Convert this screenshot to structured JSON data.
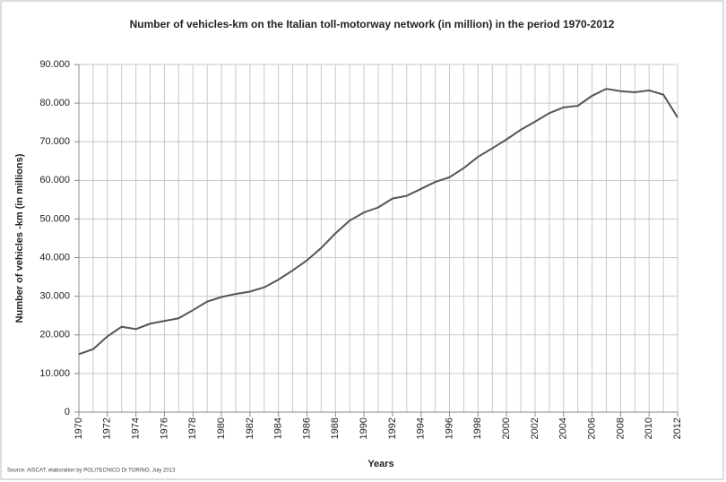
{
  "chart_data": {
    "type": "line",
    "title": "Number of vehicles-km on the Italian toll-motorway network (in million) in the period 1970-2012",
    "x_label": "Years",
    "y_label": "Number of vehicles -km (in millions)",
    "source": "Source: AISCAT, elaboration by POLITECNICO DI TORINO, July 2013",
    "x": [
      1970,
      1971,
      1972,
      1973,
      1974,
      1975,
      1976,
      1977,
      1978,
      1979,
      1980,
      1981,
      1982,
      1983,
      1984,
      1985,
      1986,
      1987,
      1988,
      1989,
      1990,
      1991,
      1992,
      1993,
      1994,
      1995,
      1996,
      1997,
      1998,
      1999,
      2000,
      2001,
      2002,
      2003,
      2004,
      2005,
      2006,
      2007,
      2008,
      2009,
      2010,
      2011,
      2012
    ],
    "series": [
      {
        "name": "Vehicles-km",
        "color": "#555555",
        "values": [
          15000,
          16300,
          19600,
          22100,
          21500,
          22900,
          23600,
          24300,
          26400,
          28600,
          29800,
          30600,
          31200,
          32300,
          34300,
          36700,
          39300,
          42500,
          46300,
          49600,
          51700,
          53000,
          55300,
          56000,
          57800,
          59600,
          60800,
          63200,
          66100,
          68300,
          70600,
          73100,
          75200,
          77400,
          78900,
          79300,
          81900,
          83700,
          83100,
          82800,
          83300,
          82200,
          76300
        ]
      }
    ],
    "xlim": [
      1970,
      2012
    ],
    "xticks": [
      1970,
      1972,
      1974,
      1976,
      1978,
      1980,
      1982,
      1984,
      1986,
      1988,
      1990,
      1992,
      1994,
      1996,
      1998,
      2000,
      2002,
      2004,
      2006,
      2008,
      2010,
      2012
    ],
    "ylim": [
      0,
      90000
    ],
    "yticks": [
      0,
      {
        "value": 10000,
        "label": "10.000"
      },
      {
        "value": 20000,
        "label": "20.000"
      },
      {
        "value": 30000,
        "label": "30.000"
      },
      {
        "value": 40000,
        "label": "40.000"
      },
      {
        "value": 50000,
        "label": "50.000"
      },
      {
        "value": 60000,
        "label": "60.000"
      },
      {
        "value": 70000,
        "label": "70.000"
      },
      {
        "value": 80000,
        "label": "80.000"
      },
      {
        "value": 90000,
        "label": "90.000"
      }
    ],
    "grid": true
  }
}
